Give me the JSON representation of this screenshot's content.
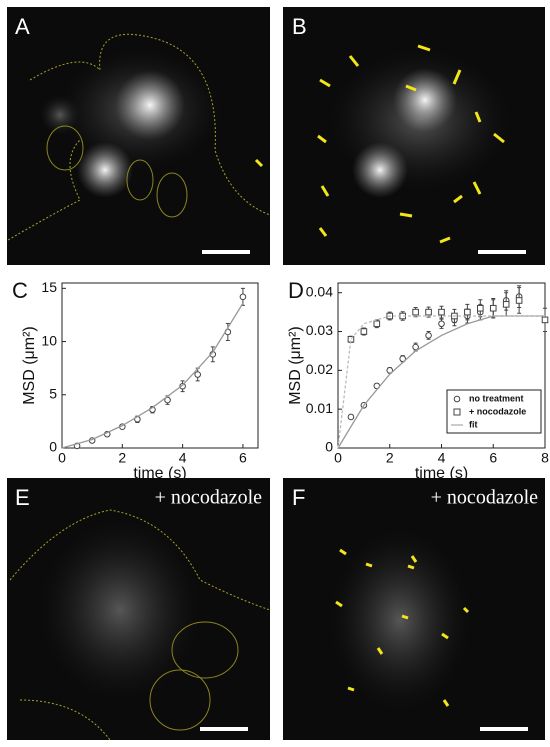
{
  "panels": [
    {
      "label": "A"
    },
    {
      "label": "B"
    },
    {
      "label": "E",
      "note": "+ nocodazole"
    },
    {
      "label": "F",
      "note": "+ nocodazole"
    }
  ],
  "chart_data": [
    {
      "type": "line",
      "panel": "C",
      "xlabel": "time (s)",
      "ylabel": "MSD (μm²)",
      "xlim": [
        0,
        6.5
      ],
      "ylim": [
        0,
        15.5
      ],
      "xticks": [
        0,
        2,
        4,
        6
      ],
      "yticks": [
        0,
        5,
        10,
        15
      ],
      "series": [
        {
          "marker": "circle",
          "color": "#444",
          "x": [
            0.5,
            1,
            1.5,
            2,
            2.5,
            3,
            3.5,
            4,
            4.5,
            5,
            5.5,
            6
          ],
          "values": [
            0.2,
            0.7,
            1.3,
            2.0,
            2.7,
            3.6,
            4.5,
            5.8,
            6.9,
            8.8,
            10.9,
            14.2
          ],
          "errors": [
            0.1,
            0.15,
            0.2,
            0.2,
            0.3,
            0.3,
            0.4,
            0.5,
            0.6,
            0.7,
            0.8,
            0.8
          ]
        },
        {
          "color": "#999",
          "x": [
            0,
            1,
            2,
            3,
            4,
            5,
            6
          ],
          "values": [
            0,
            0.8,
            2.1,
            3.8,
            5.9,
            9.0,
            13.6
          ]
        }
      ]
    },
    {
      "type": "line",
      "panel": "D",
      "xlabel": "time (s)",
      "ylabel": "MSD (μm²)",
      "xlim": [
        0,
        8
      ],
      "ylim": [
        0,
        0.0425
      ],
      "xticks": [
        0,
        2,
        4,
        6,
        8
      ],
      "yticks": [
        0,
        0.01,
        0.02,
        0.03,
        0.04
      ],
      "series": [
        {
          "name": "no treatment",
          "marker": "circle",
          "color": "#444",
          "x": [
            0.5,
            1,
            1.5,
            2,
            2.5,
            3,
            3.5,
            4,
            4.5,
            5,
            5.5,
            6,
            6.5,
            7
          ],
          "values": [
            0.008,
            0.011,
            0.016,
            0.02,
            0.023,
            0.026,
            0.029,
            0.032,
            0.033,
            0.034,
            0.035,
            0.036,
            0.038,
            0.039
          ],
          "errors": [
            0.0004,
            0.0005,
            0.0006,
            0.0007,
            0.0008,
            0.001,
            0.001,
            0.0012,
            0.0015,
            0.0018,
            0.002,
            0.0022,
            0.0025,
            0.0028
          ]
        },
        {
          "name": "+ nocodazole",
          "marker": "square",
          "color": "#444",
          "x": [
            0.5,
            1,
            1.5,
            2,
            2.5,
            3,
            3.5,
            4,
            4.5,
            5,
            5.5,
            6,
            6.5,
            7,
            8
          ],
          "values": [
            0.028,
            0.03,
            0.032,
            0.034,
            0.034,
            0.035,
            0.035,
            0.035,
            0.034,
            0.035,
            0.036,
            0.036,
            0.037,
            0.038,
            0.033
          ],
          "errors": [
            0.0008,
            0.0009,
            0.001,
            0.001,
            0.0011,
            0.0012,
            0.0013,
            0.0015,
            0.0017,
            0.002,
            0.0022,
            0.0025,
            0.003,
            0.0033,
            0.003
          ]
        },
        {
          "name": "fit",
          "color": "#999",
          "x": [
            0,
            1,
            2,
            3,
            4,
            5,
            6,
            7,
            8
          ],
          "values": [
            0,
            0.011,
            0.019,
            0.025,
            0.029,
            0.032,
            0.034,
            0.034,
            0.034
          ]
        },
        {
          "color": "#bbb",
          "dash": true,
          "x": [
            0,
            0.5,
            1,
            1.5,
            2,
            3,
            4,
            5,
            6,
            7,
            8
          ],
          "values": [
            0,
            0.028,
            0.032,
            0.033,
            0.034,
            0.034,
            0.034,
            0.034,
            0.034,
            0.034,
            0.034
          ]
        }
      ]
    }
  ]
}
